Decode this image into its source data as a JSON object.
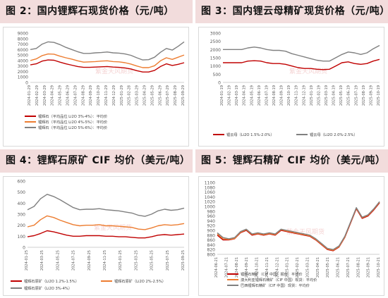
{
  "charts": [
    {
      "title": "图 2：国内锂辉石现货价格（元/吨）"
    },
    {
      "title": "图 3：国内锂云母精矿现货价格（元/吨）"
    },
    {
      "title": "图 4：锂辉石原矿 CIF 均价（美元/吨）"
    },
    {
      "title": "图 5：锂辉石精矿 CIF 均价（美元/吨）"
    }
  ],
  "watermark": "紫金天风期货",
  "chart_data": [
    {
      "type": "line",
      "ylim": [
        0,
        9000
      ],
      "yticks": [
        0,
        1000,
        2000,
        3000,
        4000,
        5000,
        6000,
        7000,
        8000,
        9000
      ],
      "xticks": [
        "2024-01-29",
        "2024-02-29",
        "2024-03-29",
        "2024-04-29",
        "2024-05-29",
        "2024-06-29",
        "2024-07-29",
        "2024-08-29",
        "2024-09-29",
        "2024-10-29",
        "2024-11-29",
        "2024-12-29",
        "2025-01-29",
        "2025-02-28",
        "2025-03-29",
        "2025-04-29",
        "2025-05-29",
        "2025-06-29",
        "2025-07-29",
        "2025-08-29",
        "2025-09-29"
      ],
      "series": [
        {
          "name": "锂辉石（平均品位 Li2O 3%-4%）：平均价",
          "color": "#c00000",
          "values": [
            3200,
            3400,
            3900,
            4100,
            4050,
            3700,
            3400,
            3150,
            2900,
            2750,
            2750,
            2800,
            2850,
            2900,
            2800,
            2750,
            2650,
            2450,
            2150,
            1900,
            1900,
            2200,
            2900,
            3400,
            3100,
            3300,
            3600
          ]
        },
        {
          "name": "锂辉石（平均品位 Li2O 4%-5%）：平均价",
          "color": "#ed7d31",
          "values": [
            4000,
            4300,
            4900,
            5200,
            5150,
            4800,
            4500,
            4250,
            3950,
            3700,
            3750,
            3800,
            3900,
            3950,
            3800,
            3750,
            3600,
            3350,
            3000,
            2700,
            2700,
            3050,
            3950,
            4500,
            4200,
            4600,
            5000
          ]
        },
        {
          "name": "锂辉石（平均品位 Li2O 5%-6%）：平均价",
          "color": "#808080",
          "values": [
            6000,
            6200,
            7000,
            7400,
            7300,
            6900,
            6400,
            6000,
            5600,
            5300,
            5300,
            5400,
            5450,
            5550,
            5400,
            5350,
            5200,
            4950,
            4500,
            4100,
            4150,
            4600,
            5500,
            6200,
            5900,
            6600,
            7400
          ]
        }
      ]
    },
    {
      "type": "line",
      "ylim": [
        0,
        3000
      ],
      "yticks": [
        0,
        500,
        1000,
        1500,
        2000,
        2500,
        3000
      ],
      "xticks": [
        "2024-01-19",
        "2024-02-19",
        "2024-03-19",
        "2024-04-19",
        "2024-05-19",
        "2024-06-19",
        "2024-07-19",
        "2024-08-19",
        "2024-09-19",
        "2024-10-19",
        "2024-11-19",
        "2024-12-19",
        "2025-01-19",
        "2025-02-19",
        "2025-03-19",
        "2025-04-19",
        "2025-05-19",
        "2025-06-19",
        "2025-07-19",
        "2025-08-19",
        "2025-09-19",
        "2025-10-19"
      ],
      "series": [
        {
          "name": "锂云母（Li2O 1.5%-2.0%）",
          "color": "#c00000",
          "values": [
            1200,
            1200,
            1200,
            1200,
            1300,
            1320,
            1300,
            1200,
            1150,
            1150,
            1100,
            1000,
            900,
            850,
            850,
            800,
            780,
            800,
            1000,
            1200,
            1250,
            1150,
            1100,
            1150,
            1300,
            1400
          ]
        },
        {
          "name": "锂云母（Li2O 2.0%-2.5%）",
          "color": "#808080",
          "values": [
            2000,
            2000,
            2000,
            2000,
            2100,
            2150,
            2100,
            2000,
            1950,
            1950,
            1900,
            1750,
            1650,
            1550,
            1450,
            1350,
            1300,
            1300,
            1500,
            1700,
            1850,
            1800,
            1700,
            1800,
            2050,
            2250
          ]
        }
      ]
    },
    {
      "type": "line",
      "ylim": [
        0,
        600
      ],
      "yticks": [
        0,
        100,
        200,
        300,
        400,
        500,
        600
      ],
      "xticks": [
        "2024-01-25",
        "2024-03-25",
        "2024-05-25",
        "2024-07-25",
        "2024-09-25",
        "2024-11-25",
        "2025-01-25",
        "2025-03-25",
        "2025-05-25",
        "2025-07-25",
        "2025-09-25"
      ],
      "series": [
        {
          "name": "锂辉石原矿（Li2O 1.2%-1.5%）",
          "color": "#c00000",
          "values": [
            95,
            105,
            125,
            150,
            140,
            125,
            110,
            100,
            100,
            105,
            105,
            105,
            100,
            100,
            95,
            95,
            90,
            85,
            85,
            95,
            110,
            115,
            110,
            115,
            120
          ]
        },
        {
          "name": "锂辉石原矿（Li2O 2%-2.5%）",
          "color": "#ed7d31",
          "values": [
            185,
            200,
            250,
            285,
            270,
            245,
            225,
            205,
            195,
            200,
            200,
            205,
            195,
            195,
            190,
            185,
            180,
            165,
            160,
            175,
            195,
            205,
            200,
            205,
            215
          ]
        },
        {
          "name": "锂辉石原矿（Li2O 3%-4%）",
          "color": "#808080",
          "values": [
            340,
            370,
            440,
            480,
            460,
            430,
            395,
            360,
            340,
            345,
            345,
            350,
            340,
            335,
            330,
            320,
            310,
            290,
            280,
            300,
            330,
            345,
            335,
            340,
            355
          ]
        }
      ]
    },
    {
      "type": "line",
      "ylim": [
        800,
        1100
      ],
      "yticks": [
        800,
        820,
        840,
        860,
        880,
        900,
        920,
        940,
        960,
        980,
        1000,
        1020,
        1040,
        1060,
        1080,
        1100
      ],
      "xticks": [
        "2024-06-21",
        "2024-07-21",
        "2024-08-21",
        "2024-09-21",
        "2024-10-21",
        "2024-11-21",
        "2024-12-21",
        "2025-01-21",
        "2025-02-21",
        "2025-03-21",
        "2025-04-21",
        "2025-05-21",
        "2025-06-21",
        "2025-07-21",
        "2025-08-21",
        "2025-09-21",
        "2025-10-21"
      ],
      "series": [
        {
          "name": "锂辉石精矿（CIF 中国）报价：平均价",
          "color": "#c00000",
          "values": [
            880,
            860,
            860,
            865,
            890,
            900,
            880,
            885,
            880,
            885,
            880,
            900,
            895,
            890,
            885,
            880,
            875,
            860,
            840,
            820,
            815,
            830,
            870,
            930,
            990,
            950,
            960,
            985,
            1015
          ]
        },
        {
          "name": "澳大利亚锂辉石精矿（CIF 中国）现货：平均价",
          "color": "#ed7d31",
          "values": [
            885,
            865,
            862,
            866,
            892,
            903,
            883,
            887,
            882,
            887,
            882,
            903,
            897,
            892,
            887,
            882,
            877,
            862,
            842,
            822,
            817,
            832,
            872,
            933,
            993,
            953,
            963,
            988,
            1018
          ]
        },
        {
          "name": "巴西锂辉石精矿（CIF 中国）现货：平均价",
          "color": "#808080",
          "values": [
            890,
            870,
            865,
            870,
            895,
            905,
            885,
            890,
            885,
            890,
            885,
            905,
            900,
            895,
            890,
            885,
            880,
            865,
            845,
            825,
            820,
            835,
            875,
            935,
            995,
            955,
            965,
            990,
            1020
          ]
        }
      ]
    }
  ]
}
